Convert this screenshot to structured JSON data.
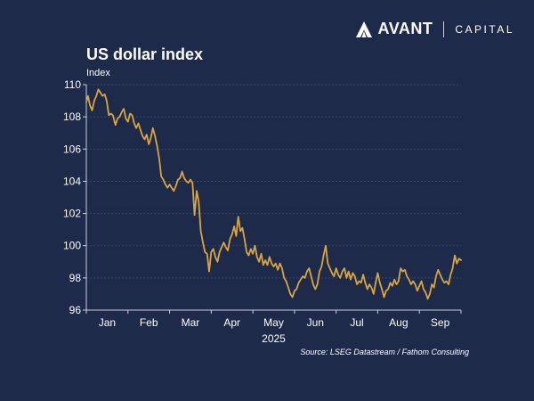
{
  "brand": {
    "name": "AVANT",
    "sub": "CAPITAL",
    "logo_icon": "avant-a-icon"
  },
  "colors": {
    "background": "#1e2a4a",
    "line": "#d9a542",
    "grid": "#3a4a6e",
    "text": "#ffffff"
  },
  "chart_data": {
    "type": "line",
    "title": "US dollar index",
    "ylabel": "Index",
    "xlabel": "2025",
    "ylim": [
      96,
      110
    ],
    "yticks": [
      96,
      98,
      100,
      102,
      104,
      106,
      108,
      110
    ],
    "x_range": [
      1,
      10
    ],
    "month_labels": [
      {
        "label": "Jan",
        "x": 1.5
      },
      {
        "label": "Feb",
        "x": 2.5
      },
      {
        "label": "Mar",
        "x": 3.5
      },
      {
        "label": "Apr",
        "x": 4.5
      },
      {
        "label": "May",
        "x": 5.5
      },
      {
        "label": "Jun",
        "x": 6.5
      },
      {
        "label": "Jul",
        "x": 7.5
      },
      {
        "label": "Aug",
        "x": 8.5
      },
      {
        "label": "Sep",
        "x": 9.5
      }
    ],
    "series": [
      {
        "name": "US dollar index",
        "points": [
          [
            1.0,
            108.9
          ],
          [
            1.04,
            109.3
          ],
          [
            1.09,
            108.7
          ],
          [
            1.14,
            108.4
          ],
          [
            1.19,
            109.0
          ],
          [
            1.24,
            109.3
          ],
          [
            1.29,
            109.7
          ],
          [
            1.34,
            109.5
          ],
          [
            1.39,
            109.3
          ],
          [
            1.44,
            109.4
          ],
          [
            1.49,
            109.0
          ],
          [
            1.54,
            108.1
          ],
          [
            1.59,
            108.2
          ],
          [
            1.64,
            108.1
          ],
          [
            1.7,
            107.5
          ],
          [
            1.75,
            107.9
          ],
          [
            1.8,
            108.0
          ],
          [
            1.85,
            108.3
          ],
          [
            1.9,
            108.5
          ],
          [
            1.95,
            107.9
          ],
          [
            2.0,
            107.7
          ],
          [
            2.05,
            108.2
          ],
          [
            2.1,
            108.1
          ],
          [
            2.15,
            107.6
          ],
          [
            2.2,
            107.3
          ],
          [
            2.25,
            107.6
          ],
          [
            2.3,
            107.2
          ],
          [
            2.35,
            106.8
          ],
          [
            2.4,
            106.6
          ],
          [
            2.45,
            106.9
          ],
          [
            2.5,
            106.3
          ],
          [
            2.55,
            106.7
          ],
          [
            2.6,
            107.3
          ],
          [
            2.65,
            106.8
          ],
          [
            2.7,
            106.2
          ],
          [
            2.75,
            105.4
          ],
          [
            2.8,
            104.3
          ],
          [
            2.85,
            104.1
          ],
          [
            2.9,
            103.8
          ],
          [
            2.95,
            103.6
          ],
          [
            3.0,
            103.8
          ],
          [
            3.05,
            103.6
          ],
          [
            3.1,
            103.4
          ],
          [
            3.15,
            103.7
          ],
          [
            3.2,
            104.1
          ],
          [
            3.25,
            104.2
          ],
          [
            3.3,
            104.6
          ],
          [
            3.35,
            104.2
          ],
          [
            3.4,
            104.0
          ],
          [
            3.45,
            103.9
          ],
          [
            3.5,
            104.1
          ],
          [
            3.55,
            103.9
          ],
          [
            3.6,
            101.9
          ],
          [
            3.65,
            103.4
          ],
          [
            3.7,
            102.7
          ],
          [
            3.75,
            100.9
          ],
          [
            3.8,
            100.2
          ],
          [
            3.85,
            99.6
          ],
          [
            3.9,
            99.5
          ],
          [
            3.95,
            98.4
          ],
          [
            4.0,
            99.6
          ],
          [
            4.05,
            99.8
          ],
          [
            4.1,
            99.3
          ],
          [
            4.15,
            99.0
          ],
          [
            4.2,
            99.6
          ],
          [
            4.25,
            99.9
          ],
          [
            4.3,
            100.2
          ],
          [
            4.35,
            99.9
          ],
          [
            4.4,
            99.7
          ],
          [
            4.45,
            100.4
          ],
          [
            4.5,
            100.7
          ],
          [
            4.55,
            101.2
          ],
          [
            4.6,
            100.6
          ],
          [
            4.65,
            101.8
          ],
          [
            4.7,
            100.9
          ],
          [
            4.75,
            101.1
          ],
          [
            4.8,
            100.4
          ],
          [
            4.85,
            99.6
          ],
          [
            4.9,
            99.4
          ],
          [
            4.95,
            99.8
          ],
          [
            5.0,
            99.5
          ],
          [
            5.05,
            100.0
          ],
          [
            5.1,
            99.3
          ],
          [
            5.15,
            99.0
          ],
          [
            5.2,
            99.5
          ],
          [
            5.25,
            98.8
          ],
          [
            5.3,
            99.1
          ],
          [
            5.35,
            98.8
          ],
          [
            5.4,
            99.3
          ],
          [
            5.45,
            98.9
          ],
          [
            5.5,
            98.7
          ],
          [
            5.55,
            98.9
          ],
          [
            5.6,
            98.5
          ],
          [
            5.65,
            98.9
          ],
          [
            5.7,
            98.6
          ],
          [
            5.75,
            98.0
          ],
          [
            5.8,
            97.8
          ],
          [
            5.85,
            97.4
          ],
          [
            5.9,
            97.0
          ],
          [
            5.95,
            96.8
          ],
          [
            6.0,
            97.2
          ],
          [
            6.05,
            97.3
          ],
          [
            6.1,
            97.7
          ],
          [
            6.15,
            97.9
          ],
          [
            6.2,
            98.1
          ],
          [
            6.25,
            98.0
          ],
          [
            6.3,
            98.4
          ],
          [
            6.35,
            98.6
          ],
          [
            6.4,
            98.1
          ],
          [
            6.45,
            97.6
          ],
          [
            6.5,
            97.3
          ],
          [
            6.55,
            97.6
          ],
          [
            6.6,
            98.4
          ],
          [
            6.65,
            98.7
          ],
          [
            6.7,
            99.4
          ],
          [
            6.75,
            100.0
          ],
          [
            6.8,
            98.9
          ],
          [
            6.85,
            98.6
          ],
          [
            6.9,
            98.3
          ],
          [
            6.95,
            98.1
          ],
          [
            7.0,
            98.6
          ],
          [
            7.05,
            98.2
          ],
          [
            7.1,
            98.0
          ],
          [
            7.15,
            98.4
          ],
          [
            7.2,
            98.6
          ],
          [
            7.25,
            98.0
          ],
          [
            7.3,
            98.4
          ],
          [
            7.35,
            97.9
          ],
          [
            7.4,
            98.3
          ],
          [
            7.45,
            98.1
          ],
          [
            7.5,
            97.6
          ],
          [
            7.55,
            97.8
          ],
          [
            7.6,
            97.7
          ],
          [
            7.65,
            98.2
          ],
          [
            7.7,
            97.7
          ],
          [
            7.75,
            97.3
          ],
          [
            7.8,
            97.6
          ],
          [
            7.85,
            97.4
          ],
          [
            7.9,
            97.0
          ],
          [
            7.95,
            97.7
          ],
          [
            8.0,
            98.3
          ],
          [
            8.05,
            97.7
          ],
          [
            8.1,
            97.3
          ],
          [
            8.15,
            96.8
          ],
          [
            8.2,
            97.2
          ],
          [
            8.25,
            97.3
          ],
          [
            8.3,
            97.7
          ],
          [
            8.35,
            97.5
          ],
          [
            8.4,
            97.9
          ],
          [
            8.45,
            97.6
          ],
          [
            8.5,
            97.8
          ],
          [
            8.55,
            98.6
          ],
          [
            8.6,
            98.4
          ],
          [
            8.65,
            98.5
          ],
          [
            8.7,
            98.1
          ],
          [
            8.75,
            97.9
          ],
          [
            8.8,
            97.6
          ],
          [
            8.85,
            97.8
          ],
          [
            8.9,
            97.6
          ],
          [
            8.95,
            97.2
          ],
          [
            9.0,
            97.5
          ],
          [
            9.05,
            97.8
          ],
          [
            9.1,
            97.3
          ],
          [
            9.15,
            97.1
          ],
          [
            9.2,
            96.7
          ],
          [
            9.25,
            97.0
          ],
          [
            9.3,
            97.6
          ],
          [
            9.35,
            97.4
          ],
          [
            9.4,
            98.1
          ],
          [
            9.45,
            98.5
          ],
          [
            9.5,
            98.2
          ],
          [
            9.55,
            97.9
          ],
          [
            9.6,
            97.7
          ],
          [
            9.65,
            97.8
          ],
          [
            9.7,
            97.6
          ],
          [
            9.75,
            98.2
          ],
          [
            9.8,
            98.6
          ],
          [
            9.85,
            99.4
          ],
          [
            9.9,
            98.9
          ],
          [
            9.95,
            99.2
          ],
          [
            10.0,
            99.1
          ]
        ]
      }
    ]
  },
  "source": "Source: LSEG Datastream / Fathom Consulting"
}
